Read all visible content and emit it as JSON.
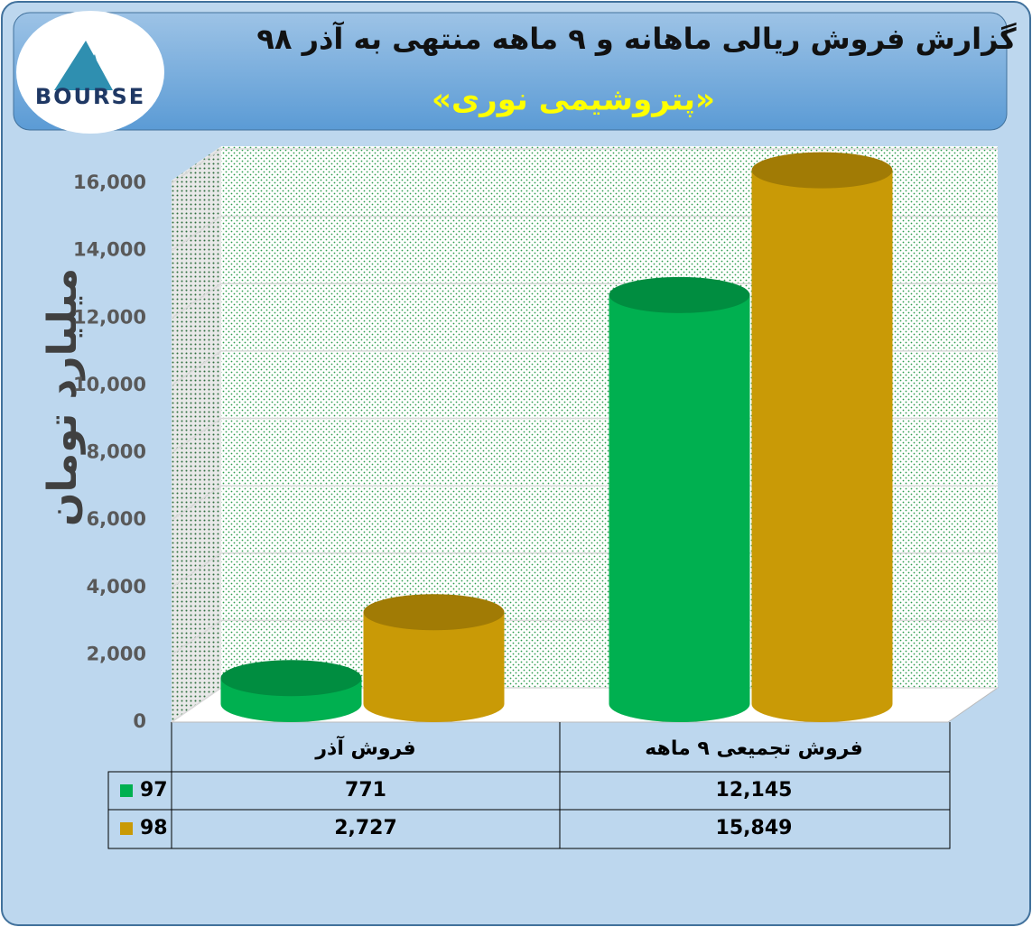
{
  "chart_data": {
    "type": "bar3d",
    "title": "گزارش فروش ریالی ماهانه و ۹ ماهه منتهی به آذر ۹۸",
    "subtitle": "«پتروشیمی نوری»",
    "y_label": "میلیارد تومان",
    "logo": "BOURSE",
    "categories": [
      "فروش آذر",
      "فروش تجمیعی ۹ ماهه"
    ],
    "series": [
      {
        "name": "97",
        "color": "#00b050",
        "values": [
          771,
          12145
        ],
        "value_labels": [
          "771",
          "12,145"
        ]
      },
      {
        "name": "98",
        "color": "#c99a06",
        "values": [
          2727,
          15849
        ],
        "value_labels": [
          "2,727",
          "15,849"
        ]
      }
    ],
    "ylim": [
      0,
      16000
    ],
    "yticks": [
      0,
      {
        "value": 2000,
        "label": "2,000"
      },
      {
        "value": 4000,
        "label": "4,000"
      },
      {
        "value": 6000,
        "label": "6,000"
      },
      {
        "value": 8000,
        "label": "8,000"
      },
      {
        "value": 10000,
        "label": "10,000"
      },
      {
        "value": 12000,
        "label": "12,000"
      },
      {
        "value": 14000,
        "label": "14,000"
      },
      {
        "value": 16000,
        "label": "16,000"
      }
    ],
    "grid": true
  }
}
